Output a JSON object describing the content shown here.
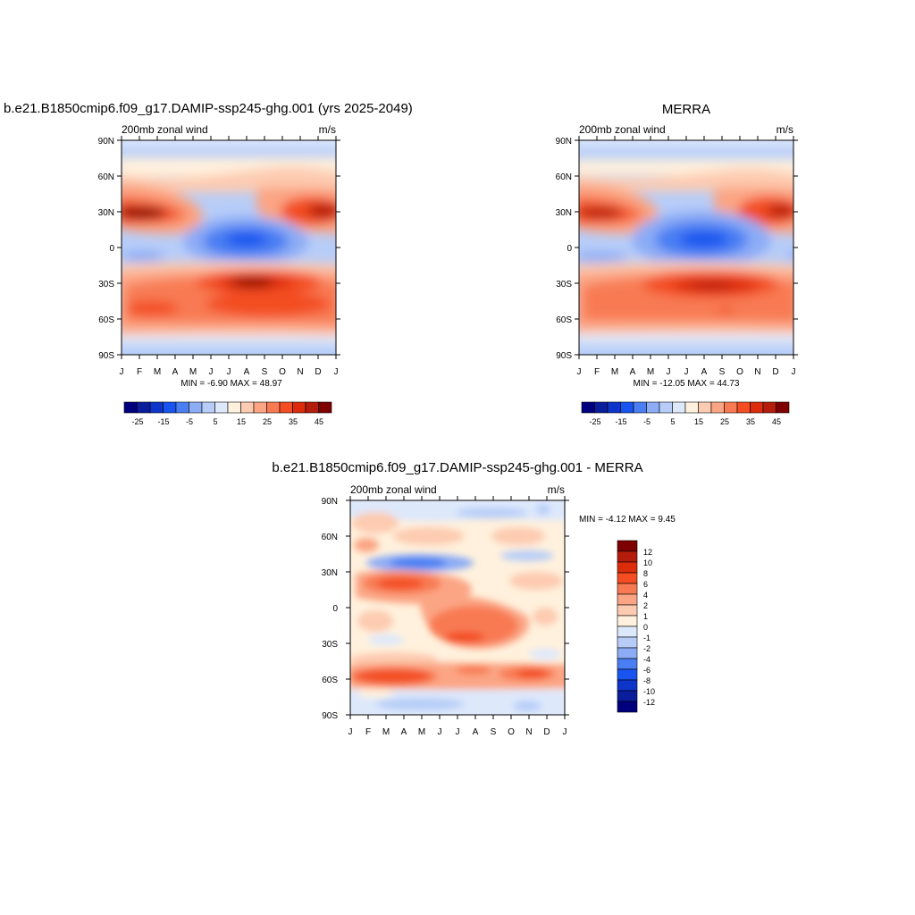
{
  "chart_data": [
    {
      "type": "heatmap",
      "title": "b.e21.B1850cmip6.f09_g17.DAMIP-ssp245-ghg.001 (yrs 2025-2049)",
      "left_label": "200mb zonal wind",
      "right_label": "m/s",
      "stats": "MIN =  -6.90 MAX =  48.97",
      "x_ticks": [
        "J",
        "F",
        "M",
        "A",
        "M",
        "J",
        "J",
        "A",
        "S",
        "O",
        "N",
        "D",
        "J"
      ],
      "y_ticks": [
        "90N",
        "60N",
        "30N",
        "0",
        "30S",
        "60S",
        "90S"
      ],
      "colorbar": {
        "orientation": "horizontal",
        "labels": [
          "-25",
          "-15",
          "-5",
          "5",
          "15",
          "25",
          "35",
          "45"
        ],
        "colors": [
          "#00007f",
          "#0a1d9c",
          "#0d35c9",
          "#1854ef",
          "#4a7ef3",
          "#8cacf5",
          "#b7cdf8",
          "#dde8fb",
          "#fff1dd",
          "#fdcbb1",
          "#fba584",
          "#f87a52",
          "#f34d21",
          "#dc2c0c",
          "#b41c0c",
          "#7f0000"
        ]
      }
    },
    {
      "type": "heatmap",
      "title": "MERRA",
      "left_label": "200mb zonal wind",
      "right_label": "m/s",
      "stats": "MIN = -12.05 MAX =  44.73",
      "x_ticks": [
        "J",
        "F",
        "M",
        "A",
        "M",
        "J",
        "J",
        "A",
        "S",
        "O",
        "N",
        "D",
        "J"
      ],
      "y_ticks": [
        "90N",
        "60N",
        "30N",
        "0",
        "30S",
        "60S",
        "90S"
      ],
      "colorbar": {
        "orientation": "horizontal",
        "labels": [
          "-25",
          "-15",
          "-5",
          "5",
          "15",
          "25",
          "35",
          "45"
        ]
      }
    },
    {
      "type": "heatmap",
      "title": "b.e21.B1850cmip6.f09_g17.DAMIP-ssp245-ghg.001 - MERRA",
      "left_label": "200mb zonal wind",
      "right_label": "m/s",
      "stats": "MIN =  -4.12 MAX =   9.45",
      "x_ticks": [
        "J",
        "F",
        "M",
        "A",
        "M",
        "J",
        "J",
        "A",
        "S",
        "O",
        "N",
        "D",
        "J"
      ],
      "y_ticks": [
        "90N",
        "60N",
        "30N",
        "0",
        "30S",
        "60S",
        "90S"
      ],
      "colorbar": {
        "orientation": "vertical",
        "labels": [
          "12",
          "10",
          "8",
          "6",
          "4",
          "2",
          "1",
          "0",
          "-1",
          "-2",
          "-4",
          "-6",
          "-8",
          "-10",
          "-12"
        ],
        "colors": [
          "#7f0000",
          "#b41c0c",
          "#dc2c0c",
          "#f34d21",
          "#f87a52",
          "#fba584",
          "#fdcbb1",
          "#fff1dd",
          "#dde8fb",
          "#b7cdf8",
          "#8cacf5",
          "#4a7ef3",
          "#1854ef",
          "#0d35c9",
          "#0a1d9c",
          "#00007f"
        ]
      }
    }
  ]
}
